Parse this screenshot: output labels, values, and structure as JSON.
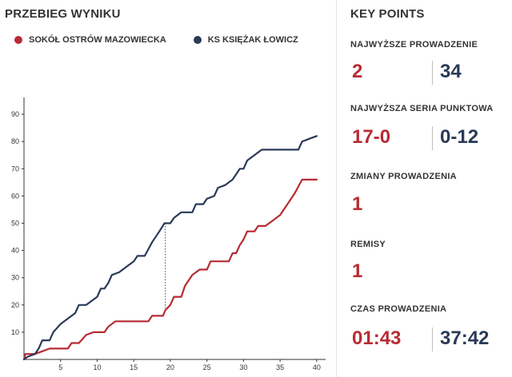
{
  "left_title": "PRZEBIEG WYNIKU",
  "right_title": "KEY POINTS",
  "colors": {
    "home": "#b82b34",
    "away": "#2a3a57"
  },
  "teams": {
    "home": "SOKÓŁ OSTRÓW MAZOWIECKA",
    "away": "KS KSIĘŻAK ŁOWICZ"
  },
  "key_points": {
    "largest_lead": {
      "label": "NAJWYŻSZE PROWADZENIE",
      "home": "2",
      "away": "34"
    },
    "longest_run": {
      "label": "NAJWYŻSZA SERIA PUNKTOWA",
      "home": "17-0",
      "away": "0-12"
    },
    "lead_changes": {
      "label": "ZMIANY PROWADZENIA",
      "value": "1"
    },
    "ties": {
      "label": "REMISY",
      "value": "1"
    },
    "time_leading": {
      "label": "CZAS PROWADZENIA",
      "home": "01:43",
      "away": "37:42"
    }
  },
  "chart_data": {
    "type": "line",
    "xlabel": "",
    "ylabel": "",
    "xlim": [
      0,
      41
    ],
    "ylim": [
      0,
      95
    ],
    "x_ticks": [
      5,
      10,
      15,
      20,
      25,
      30,
      35,
      40
    ],
    "y_ticks": [
      10,
      20,
      30,
      40,
      50,
      60,
      70,
      80,
      90
    ],
    "grid": false,
    "annotations": [
      {
        "type": "vertical-dotted-line",
        "x": 19.3
      }
    ],
    "series": [
      {
        "name": "SOKÓŁ OSTRÓW MAZOWIECKA",
        "points": [
          [
            0,
            0
          ],
          [
            0.2,
            2
          ],
          [
            1.5,
            2
          ],
          [
            2.5,
            3
          ],
          [
            3.5,
            4
          ],
          [
            6,
            4
          ],
          [
            6.5,
            6
          ],
          [
            7.5,
            6
          ],
          [
            8.5,
            9
          ],
          [
            9.5,
            10
          ],
          [
            11,
            10
          ],
          [
            11.5,
            12
          ],
          [
            12.5,
            14
          ],
          [
            17,
            14
          ],
          [
            17.5,
            16
          ],
          [
            19,
            16
          ],
          [
            19.3,
            18
          ],
          [
            20,
            20
          ],
          [
            20.5,
            23
          ],
          [
            21.5,
            23
          ],
          [
            22,
            27
          ],
          [
            22.5,
            29
          ],
          [
            23,
            31
          ],
          [
            24,
            33
          ],
          [
            25,
            33
          ],
          [
            25.5,
            36
          ],
          [
            28,
            36
          ],
          [
            28.5,
            39
          ],
          [
            29,
            39
          ],
          [
            29.5,
            42
          ],
          [
            30,
            44
          ],
          [
            30.5,
            47
          ],
          [
            31.5,
            47
          ],
          [
            32,
            49
          ],
          [
            33,
            49
          ],
          [
            34,
            51
          ],
          [
            35,
            53
          ],
          [
            36,
            57
          ],
          [
            37,
            61
          ],
          [
            38,
            66
          ],
          [
            40,
            66
          ]
        ]
      },
      {
        "name": "KS KSIĘŻAK ŁOWICZ",
        "points": [
          [
            0,
            0
          ],
          [
            0.5,
            1
          ],
          [
            1.5,
            2
          ],
          [
            2,
            4
          ],
          [
            2.5,
            7
          ],
          [
            3.5,
            7
          ],
          [
            4,
            10
          ],
          [
            5,
            13
          ],
          [
            6,
            15
          ],
          [
            6.5,
            16
          ],
          [
            7,
            17
          ],
          [
            7.5,
            20
          ],
          [
            8.5,
            20
          ],
          [
            9.5,
            22
          ],
          [
            10,
            23
          ],
          [
            10.5,
            26
          ],
          [
            11,
            26
          ],
          [
            11.5,
            28
          ],
          [
            12,
            31
          ],
          [
            13,
            32
          ],
          [
            14,
            34
          ],
          [
            15,
            36
          ],
          [
            15.5,
            38
          ],
          [
            16.5,
            38
          ],
          [
            17.5,
            43
          ],
          [
            18.5,
            47
          ],
          [
            19.2,
            50
          ],
          [
            20,
            50
          ],
          [
            20.5,
            52
          ],
          [
            21,
            53
          ],
          [
            21.5,
            54
          ],
          [
            23,
            54
          ],
          [
            23.5,
            57
          ],
          [
            24.5,
            57
          ],
          [
            25,
            59
          ],
          [
            26,
            60
          ],
          [
            26.5,
            63
          ],
          [
            27.5,
            64
          ],
          [
            28,
            65
          ],
          [
            28.5,
            66
          ],
          [
            29,
            68
          ],
          [
            29.5,
            70
          ],
          [
            30,
            70
          ],
          [
            30.5,
            73
          ],
          [
            31,
            74
          ],
          [
            32,
            76
          ],
          [
            32.5,
            77
          ],
          [
            37.5,
            77
          ],
          [
            38,
            80
          ],
          [
            39,
            81
          ],
          [
            40,
            82
          ]
        ]
      }
    ]
  }
}
